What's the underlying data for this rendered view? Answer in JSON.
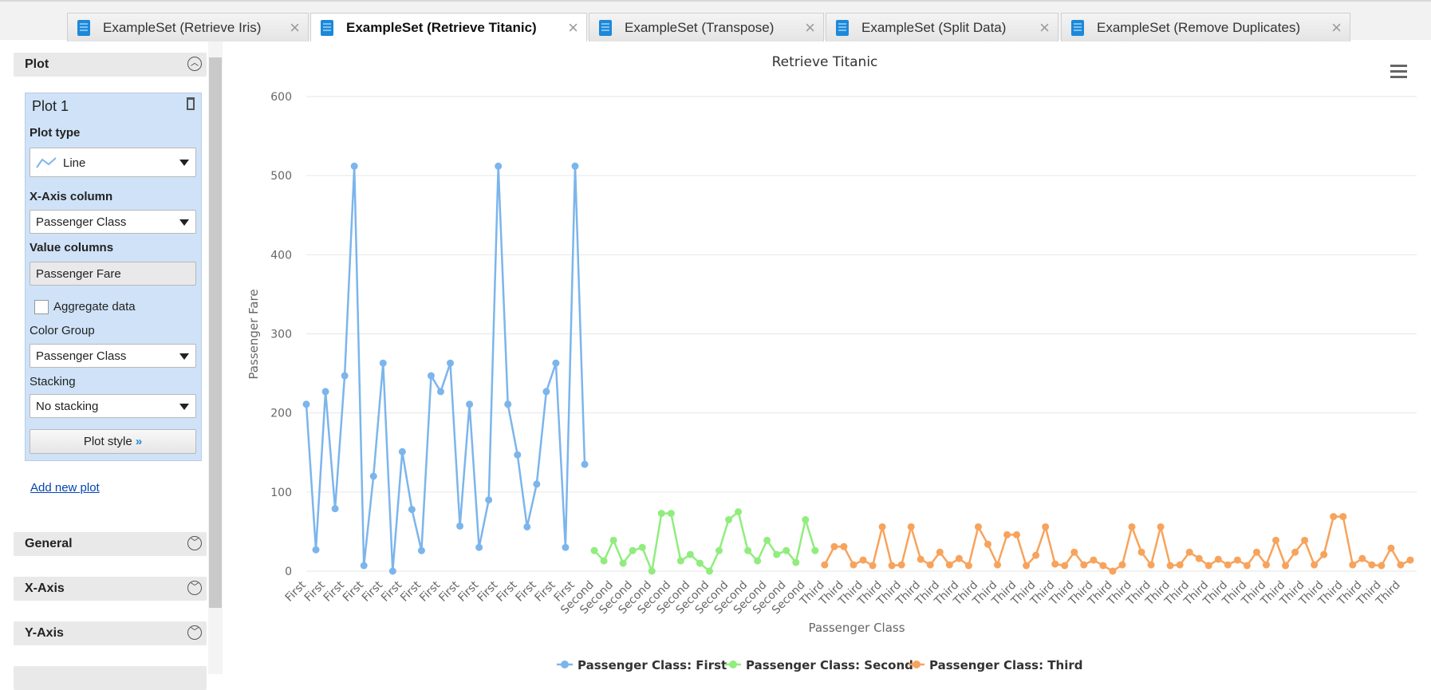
{
  "tabs": [
    "ExampleSet (Retrieve Iris)",
    "ExampleSet (Retrieve Titanic)",
    "ExampleSet (Transpose)",
    "ExampleSet (Split Data)",
    "ExampleSet (Remove Duplicates)"
  ],
  "sidebar": {
    "section": "Plot",
    "plot_name": "Plot 1",
    "plot_type_label": "Plot type",
    "plot_type": "Line",
    "x_axis_label": "X-Axis column",
    "x_axis_value": "Passenger Class",
    "value_columns_label": "Value columns",
    "value_column": "Passenger Fare",
    "aggregate_label": "Aggregate data",
    "color_group_label": "Color Group",
    "color_group": "Passenger Class",
    "stacking_label": "Stacking",
    "stacking": "No stacking",
    "plot_style": "Plot style",
    "add_plot": "Add new plot",
    "sections": [
      "General",
      "X-Axis",
      "Y-Axis"
    ]
  },
  "chart_data": {
    "type": "line",
    "title": "Retrieve Titanic",
    "x_label": "Passenger Class",
    "y_label": "Passenger Fare",
    "ylim": [
      0,
      600
    ],
    "yticks": [
      0,
      100,
      200,
      300,
      400,
      500,
      600
    ],
    "grid": true,
    "categories": [
      "First",
      null,
      "First",
      null,
      "First",
      null,
      "First",
      null,
      "First",
      null,
      "First",
      null,
      "First",
      null,
      "First",
      null,
      "First",
      null,
      "First",
      null,
      "First",
      null,
      "First",
      null,
      "First",
      null,
      "First",
      null,
      "First",
      null,
      "Second",
      null,
      "Second",
      null,
      "Second",
      null,
      "Second",
      null,
      "Second",
      null,
      "Second",
      null,
      "Second",
      null,
      "Second",
      null,
      "Second",
      null,
      "Second",
      null,
      "Second",
      null,
      "Second",
      null,
      "Third",
      null,
      "Third",
      null,
      "Third",
      null,
      "Third",
      null,
      "Third",
      null,
      "Third",
      null,
      "Third",
      null,
      "Third",
      null,
      "Third",
      null,
      "Third",
      null,
      "Third",
      null,
      "Third",
      null,
      "Third",
      null,
      "Third",
      null,
      "Third",
      null,
      "Third",
      null,
      "Third",
      null,
      "Third",
      null,
      "Third",
      null,
      "Third",
      null,
      "Third",
      null,
      "Third",
      null,
      "Third",
      null,
      "Third",
      null,
      "Third",
      null,
      "Third",
      null,
      "Third",
      null,
      "Third",
      null,
      "Third",
      null,
      "Third",
      null,
      "Third",
      null
    ],
    "series": [
      {
        "name": "Passenger Class: First",
        "color": "#7cb5ec",
        "values": [
          211,
          27,
          227,
          79,
          247,
          512,
          7,
          120,
          263,
          0,
          151,
          78,
          26,
          247,
          227,
          263,
          57,
          211,
          30,
          90,
          512,
          211,
          147,
          56,
          110,
          227,
          263,
          30,
          512,
          135,
          null,
          null,
          null,
          null,
          null,
          null,
          null,
          null,
          null,
          null,
          null,
          null,
          null,
          null,
          null,
          null,
          null,
          null,
          null,
          null,
          null,
          null,
          null,
          null,
          null,
          null,
          null,
          null,
          null,
          null,
          null,
          null,
          null,
          null,
          null,
          null,
          null,
          null,
          null,
          null,
          null,
          null,
          null,
          null,
          null,
          null,
          null,
          null,
          null,
          null,
          null,
          null,
          null,
          null,
          null,
          null,
          null,
          null,
          null,
          null,
          null,
          null,
          null,
          null,
          null,
          null,
          null,
          null,
          null,
          null,
          null,
          null,
          null,
          null,
          null,
          null,
          null,
          null,
          null,
          null,
          null,
          null,
          null,
          null,
          null,
          null
        ]
      },
      {
        "name": "Passenger Class: Second",
        "color": "#90ed7d",
        "values": [
          null,
          null,
          null,
          null,
          null,
          null,
          null,
          null,
          null,
          null,
          null,
          null,
          null,
          null,
          null,
          null,
          null,
          null,
          null,
          null,
          null,
          null,
          null,
          null,
          null,
          null,
          null,
          null,
          null,
          null,
          26,
          13,
          39,
          10,
          26,
          30,
          0,
          73,
          73,
          13,
          21,
          10,
          0,
          26,
          65,
          75,
          26,
          13,
          39,
          21,
          26,
          11,
          65,
          26,
          null,
          null,
          null,
          null,
          null,
          null,
          null,
          null,
          null,
          null,
          null,
          null,
          null,
          null,
          null,
          null,
          null,
          null,
          null,
          null,
          null,
          null,
          null,
          null,
          null,
          null,
          null,
          null,
          null,
          null,
          null,
          null,
          null,
          null,
          null,
          null,
          null,
          null,
          null,
          null,
          null,
          null,
          null,
          null,
          null,
          null,
          null,
          null,
          null,
          null,
          null,
          null,
          null,
          null,
          null,
          null,
          null,
          null,
          null,
          null,
          null,
          null
        ]
      },
      {
        "name": "Passenger Class: Third",
        "color": "#f7a35c",
        "values": [
          null,
          null,
          null,
          null,
          null,
          null,
          null,
          null,
          null,
          null,
          null,
          null,
          null,
          null,
          null,
          null,
          null,
          null,
          null,
          null,
          null,
          null,
          null,
          null,
          null,
          null,
          null,
          null,
          null,
          null,
          null,
          null,
          null,
          null,
          null,
          null,
          null,
          null,
          null,
          null,
          null,
          null,
          null,
          null,
          null,
          null,
          null,
          null,
          null,
          null,
          null,
          null,
          null,
          null,
          8,
          31,
          31,
          8,
          14,
          7,
          56,
          7,
          8,
          56,
          15,
          8,
          24,
          8,
          16,
          7,
          56,
          34,
          8,
          46,
          46,
          7,
          20,
          56,
          9,
          7,
          24,
          8,
          14,
          7,
          0,
          8,
          56,
          24,
          8,
          56,
          7,
          8,
          24,
          16,
          7,
          15,
          8,
          14,
          7,
          24,
          8,
          39,
          7,
          24,
          39,
          8,
          21,
          69,
          69,
          8,
          16,
          8,
          7,
          29,
          8,
          14
        ]
      }
    ]
  }
}
